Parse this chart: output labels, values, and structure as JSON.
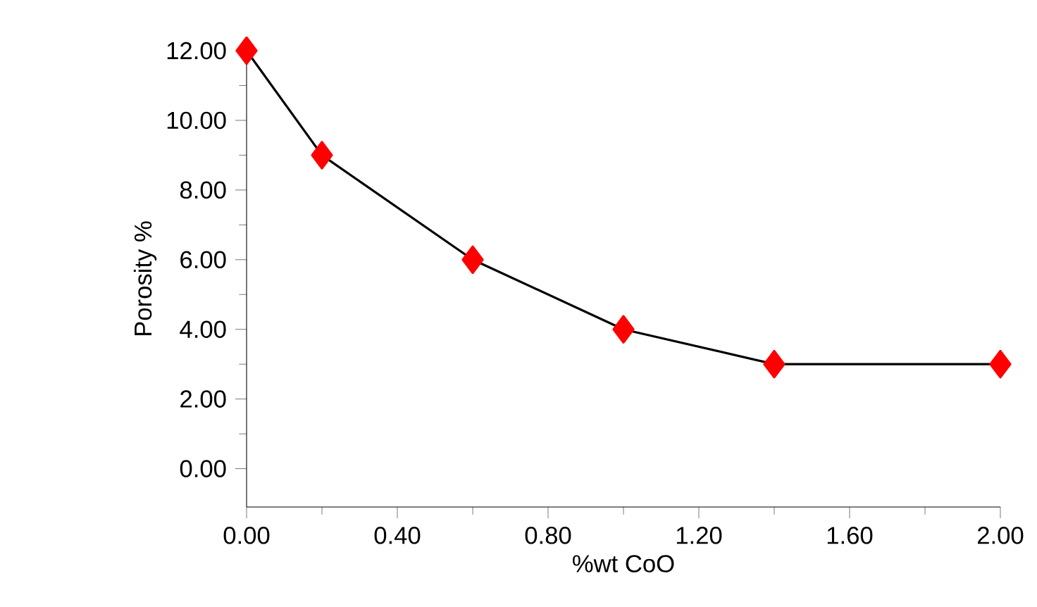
{
  "chart_data": {
    "type": "line",
    "xlabel": "%wt CoO",
    "ylabel": "Porosity %",
    "x": [
      0,
      0.2,
      0.6,
      1.0,
      1.4,
      2.0
    ],
    "series": [
      {
        "color": "#ff0000",
        "values": [
          12,
          9,
          6,
          4,
          3,
          3
        ]
      }
    ],
    "marker": "diamond",
    "xlim": [
      0,
      2
    ],
    "ylim": [
      -1.1,
      12
    ],
    "xticks": [
      {
        "value": 0,
        "label": "0.00"
      },
      {
        "value": 0.4,
        "label": "0.40"
      },
      {
        "value": 0.8,
        "label": "0.80"
      },
      {
        "value": 1.2,
        "label": "1.20"
      },
      {
        "value": 1.6,
        "label": "1.60"
      },
      {
        "value": 2.0,
        "label": "2.00"
      }
    ],
    "yticks": [
      {
        "value": 0,
        "label": "0.00"
      },
      {
        "value": 2,
        "label": "2.00"
      },
      {
        "value": 4,
        "label": "4.00"
      },
      {
        "value": 6,
        "label": "6.00"
      },
      {
        "value": 8,
        "label": "8.00"
      },
      {
        "value": 10,
        "label": "10.00"
      },
      {
        "value": 12,
        "label": "12.00"
      }
    ],
    "grid": false
  }
}
